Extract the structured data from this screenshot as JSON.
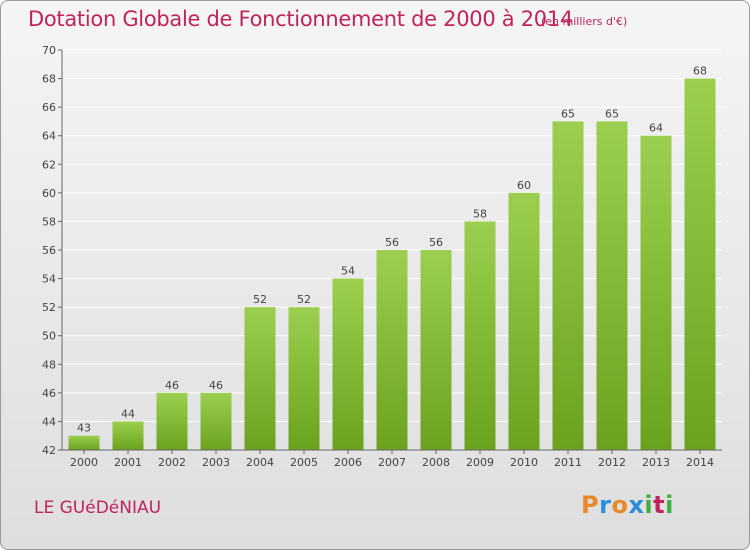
{
  "header": {
    "title": "Dotation Globale de Fonctionnement de 2000 à 2014",
    "unit": "(en milliers d'€)"
  },
  "footer": {
    "commune": "LE GUéDéNIAU",
    "brand": "Proxiti",
    "brand_colors": [
      "#e8892a",
      "#2a8fd6",
      "#e8892a",
      "#2a8fd6",
      "#3fae3a",
      "#c0245c",
      "#3fae3a"
    ]
  },
  "colors": {
    "accent": "#c0245c",
    "bar_top": "#9ccf50",
    "bar_bottom": "#6aa21d",
    "grid": "#ffffff",
    "axis_text": "#444444"
  },
  "chart_data": {
    "type": "bar",
    "title": "Dotation Globale de Fonctionnement de 2000 à 2014",
    "subtitle": "(en milliers d'€)",
    "xlabel": "",
    "ylabel": "",
    "categories": [
      "2000",
      "2001",
      "2002",
      "2003",
      "2004",
      "2005",
      "2006",
      "2007",
      "2008",
      "2009",
      "2010",
      "2011",
      "2012",
      "2013",
      "2014"
    ],
    "values": [
      43,
      44,
      46,
      46,
      52,
      52,
      54,
      56,
      56,
      58,
      60,
      65,
      65,
      64,
      68
    ],
    "ylim": [
      42,
      70
    ],
    "yticks": [
      42,
      44,
      46,
      48,
      50,
      52,
      54,
      56,
      58,
      60,
      62,
      64,
      66,
      68,
      70
    ],
    "grid": true,
    "data_labels": true,
    "legend": "none"
  }
}
